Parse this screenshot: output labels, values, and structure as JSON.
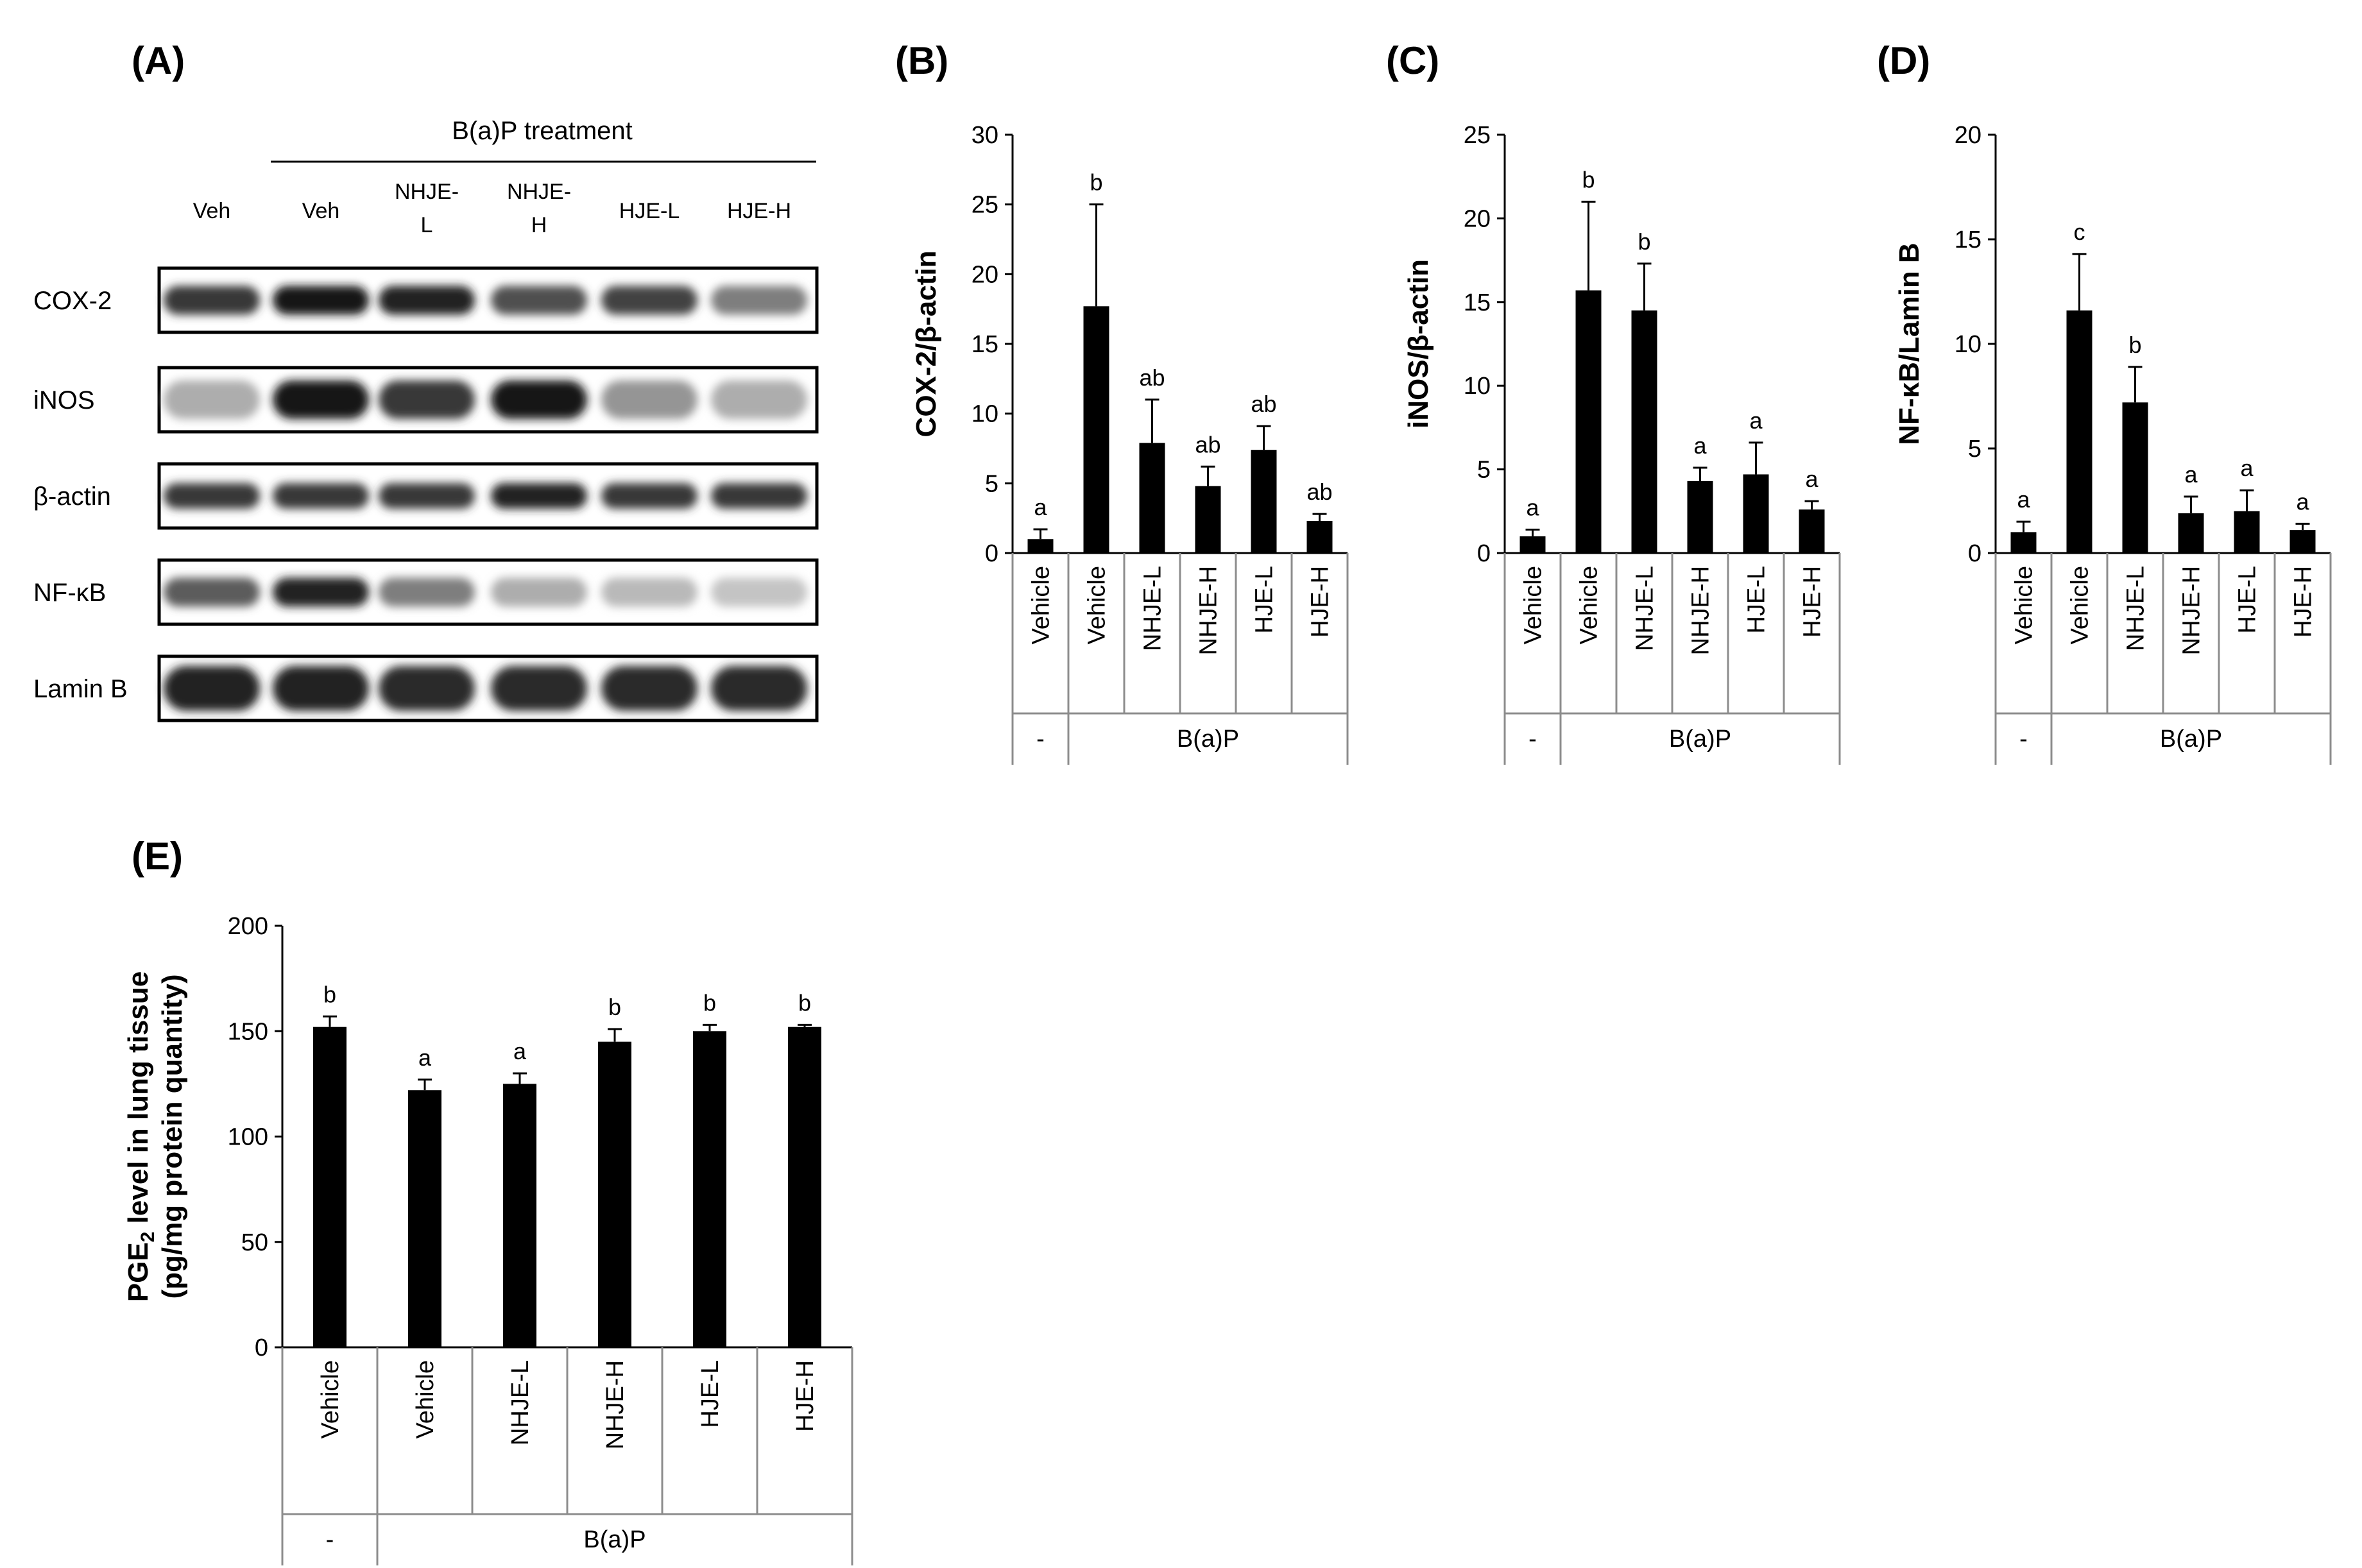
{
  "panels": {
    "a": "(A)",
    "b": "(B)",
    "c": "(C)",
    "d": "(D)",
    "e": "(E)"
  },
  "blot": {
    "treatment_label": "B(a)P treatment",
    "lanes": [
      {
        "line1": "Veh",
        "line2": ""
      },
      {
        "line1": "Veh",
        "line2": ""
      },
      {
        "line1": "NHJE-",
        "line2": "L"
      },
      {
        "line1": "NHJE-",
        "line2": "H"
      },
      {
        "line1": "HJE-L",
        "line2": ""
      },
      {
        "line1": "HJE-H",
        "line2": ""
      }
    ],
    "rows": [
      {
        "label": "COX-2",
        "intensities": [
          0.85,
          1.0,
          0.95,
          0.75,
          0.8,
          0.55
        ],
        "band_height": 0.45
      },
      {
        "label": "iNOS",
        "intensities": [
          0.35,
          1.0,
          0.85,
          1.0,
          0.45,
          0.35
        ],
        "band_height": 0.6
      },
      {
        "label": "β-actin",
        "intensities": [
          0.85,
          0.85,
          0.85,
          0.95,
          0.85,
          0.85
        ],
        "band_height": 0.4
      },
      {
        "label": "NF-κB",
        "intensities": [
          0.7,
          0.95,
          0.55,
          0.35,
          0.3,
          0.25
        ],
        "band_height": 0.45
      },
      {
        "label": "Lamin B",
        "intensities": [
          0.95,
          0.95,
          0.9,
          0.9,
          0.9,
          0.9
        ],
        "band_height": 0.7
      }
    ]
  },
  "chart_data": [
    {
      "id": "B",
      "type": "bar",
      "categories": [
        "Vehicle",
        "Vehicle",
        "NHJE-L",
        "NHJE-H",
        "HJE-L",
        "HJE-H"
      ],
      "groups": [
        {
          "label": "-",
          "span": 1
        },
        {
          "label": "B(a)P",
          "span": 5
        }
      ],
      "values": [
        1.0,
        17.7,
        7.9,
        4.8,
        7.4,
        2.3
      ],
      "errors": [
        0.7,
        7.3,
        3.1,
        1.4,
        1.7,
        0.5
      ],
      "annotations": [
        "a",
        "b",
        "ab",
        "ab",
        "ab",
        "ab"
      ],
      "ylabel": "COX-2/β-actin",
      "ylim": [
        0,
        30
      ],
      "yticks": [
        0,
        5,
        10,
        15,
        20,
        25,
        30
      ],
      "color": "#000000"
    },
    {
      "id": "C",
      "type": "bar",
      "categories": [
        "Vehicle",
        "Vehicle",
        "NHJE-L",
        "NHJE-H",
        "HJE-L",
        "HJE-H"
      ],
      "groups": [
        {
          "label": "-",
          "span": 1
        },
        {
          "label": "B(a)P",
          "span": 5
        }
      ],
      "values": [
        1.0,
        15.7,
        14.5,
        4.3,
        4.7,
        2.6
      ],
      "errors": [
        0.4,
        5.3,
        2.8,
        0.8,
        1.9,
        0.5
      ],
      "annotations": [
        "a",
        "b",
        "b",
        "a",
        "a",
        "a"
      ],
      "ylabel": "iNOS/β-actin",
      "ylim": [
        0,
        25
      ],
      "yticks": [
        0,
        5,
        10,
        15,
        20,
        25
      ],
      "color": "#000000"
    },
    {
      "id": "D",
      "type": "bar",
      "categories": [
        "Vehicle",
        "Vehicle",
        "NHJE-L",
        "NHJE-H",
        "HJE-L",
        "HJE-H"
      ],
      "groups": [
        {
          "label": "-",
          "span": 1
        },
        {
          "label": "B(a)P",
          "span": 5
        }
      ],
      "values": [
        1.0,
        11.6,
        7.2,
        1.9,
        2.0,
        1.1
      ],
      "errors": [
        0.5,
        2.7,
        1.7,
        0.8,
        1.0,
        0.3
      ],
      "annotations": [
        "a",
        "c",
        "b",
        "a",
        "a",
        "a"
      ],
      "ylabel": "NF-κB/Lamin B",
      "ylim": [
        0,
        20
      ],
      "yticks": [
        0,
        5,
        10,
        15,
        20
      ],
      "color": "#000000"
    },
    {
      "id": "E",
      "type": "bar",
      "categories": [
        "Vehicle",
        "Vehicle",
        "NHJE-L",
        "NHJE-H",
        "HJE-L",
        "HJE-H"
      ],
      "groups": [
        {
          "label": "-",
          "span": 1
        },
        {
          "label": "B(a)P",
          "span": 5
        }
      ],
      "values": [
        152,
        122,
        125,
        145,
        150,
        152
      ],
      "errors": [
        5,
        5,
        5,
        6,
        3,
        1
      ],
      "annotations": [
        "b",
        "a",
        "a",
        "b",
        "b",
        "b"
      ],
      "ylabel_line1": "PGE",
      "ylabel_sub": "2",
      "ylabel_line1_rest": " level in lung tissue",
      "ylabel_line2": "(pg/mg protein quantity)",
      "ylim": [
        0,
        200
      ],
      "yticks": [
        0,
        50,
        100,
        150,
        200
      ],
      "color": "#000000"
    }
  ]
}
